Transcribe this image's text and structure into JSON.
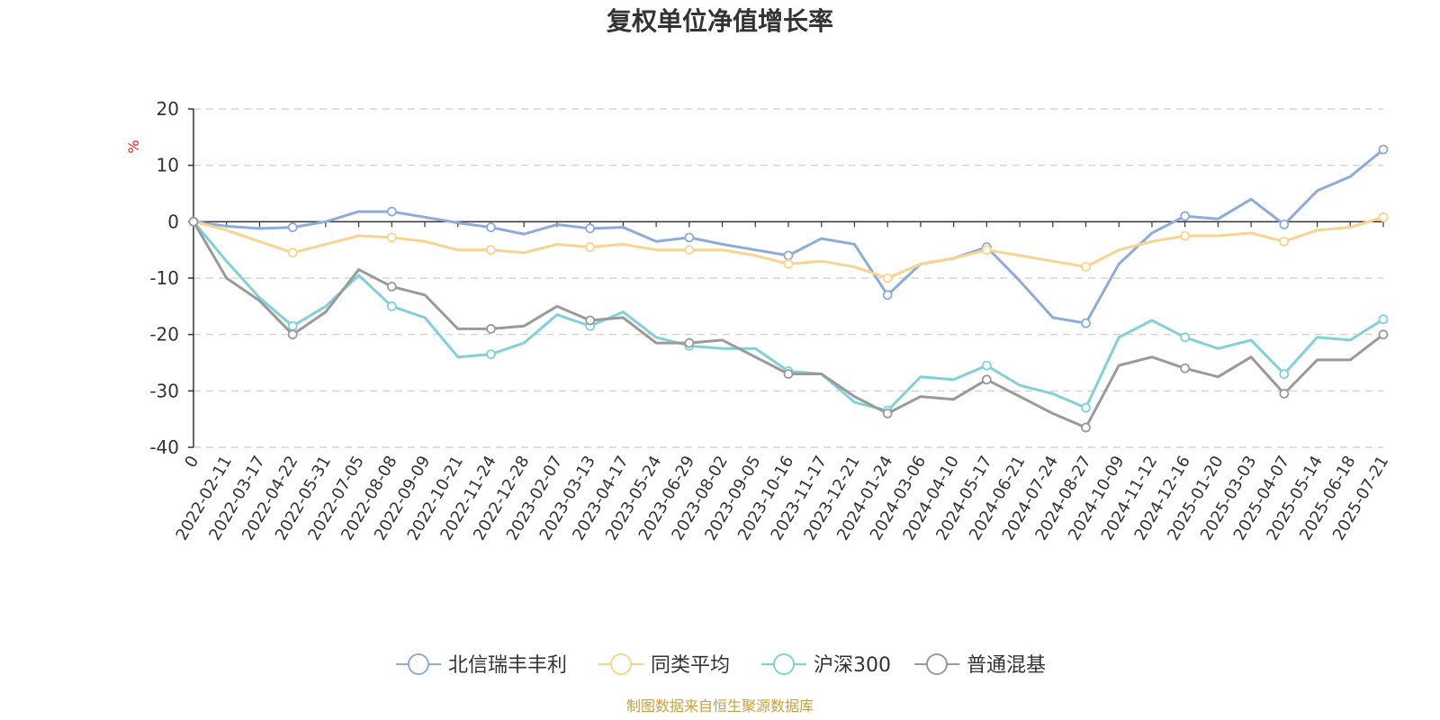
{
  "chart_data": {
    "type": "line",
    "title": "复权单位净值增长率",
    "ylabel": "%",
    "ylim": [
      -40,
      20
    ],
    "yticks": [
      20,
      10,
      0,
      -10,
      -20,
      -30,
      -40
    ],
    "grid": "horizontal-dashed",
    "legend_position": "bottom",
    "source_note": "制图数据来自恒生聚源数据库",
    "categories": [
      "0",
      "2022-02-11",
      "2022-03-17",
      "2022-04-22",
      "2022-05-31",
      "2022-07-05",
      "2022-08-08",
      "2022-09-09",
      "2022-10-21",
      "2022-11-24",
      "2022-12-28",
      "2023-02-07",
      "2023-03-13",
      "2023-04-17",
      "2023-05-24",
      "2023-06-29",
      "2023-08-02",
      "2023-09-05",
      "2023-10-16",
      "2023-11-17",
      "2023-12-21",
      "2024-01-24",
      "2024-03-06",
      "2024-04-10",
      "2024-05-17",
      "2024-06-21",
      "2024-07-24",
      "2024-08-27",
      "2024-10-09",
      "2024-11-12",
      "2024-12-16",
      "2025-01-20",
      "2025-03-03",
      "2025-04-07",
      "2025-05-14",
      "2025-06-18",
      "2025-07-21"
    ],
    "series": [
      {
        "name": "北信瑞丰丰利",
        "color": "#8eacd9",
        "values": [
          0,
          -0.8,
          -1.2,
          -1.0,
          0.0,
          1.8,
          1.8,
          0.8,
          -0.2,
          -1.0,
          -2.2,
          -0.5,
          -1.2,
          -1.0,
          -3.5,
          -2.8,
          -4.0,
          -5.0,
          -6.0,
          -3.0,
          -4.0,
          -13.0,
          -7.5,
          -6.5,
          -4.5,
          -10.5,
          -17.0,
          -18.0,
          -7.5,
          -2.0,
          1.0,
          0.5,
          4.0,
          -0.5,
          5.5,
          8.0,
          12.8
        ]
      },
      {
        "name": "同类平均",
        "color": "#f9d48e",
        "values": [
          0,
          -1.5,
          -3.5,
          -5.5,
          -4.0,
          -2.5,
          -2.8,
          -3.5,
          -5.0,
          -5.0,
          -5.5,
          -4.0,
          -4.5,
          -4.0,
          -5.0,
          -5.0,
          -5.0,
          -6.0,
          -7.5,
          -7.0,
          -8.0,
          -10.0,
          -7.5,
          -6.5,
          -5.0,
          -6.0,
          -7.0,
          -8.0,
          -5.0,
          -3.5,
          -2.5,
          -2.5,
          -2.0,
          -3.5,
          -1.5,
          -1.0,
          0.8
        ]
      },
      {
        "name": "沪深300",
        "color": "#80d2d8",
        "values": [
          0,
          -7.0,
          -13.5,
          -18.5,
          -15.0,
          -9.5,
          -15.0,
          -17.0,
          -24.0,
          -23.5,
          -21.5,
          -16.5,
          -18.5,
          -16.0,
          -20.5,
          -22.0,
          -22.5,
          -22.5,
          -26.5,
          -27.0,
          -32.0,
          -33.5,
          -27.5,
          -28.0,
          -25.5,
          -29.0,
          -30.5,
          -33.0,
          -20.5,
          -17.5,
          -20.5,
          -22.5,
          -21.0,
          -27.0,
          -20.5,
          -21.0,
          -17.3
        ]
      },
      {
        "name": "普通混基",
        "color": "#9a9a9a",
        "values": [
          0,
          -10.0,
          -14.0,
          -20.0,
          -16.0,
          -8.5,
          -11.5,
          -13.0,
          -19.0,
          -19.0,
          -18.5,
          -15.0,
          -17.5,
          -17.0,
          -21.5,
          -21.5,
          -21.0,
          -24.0,
          -27.0,
          -27.0,
          -31.0,
          -34.0,
          -31.0,
          -31.5,
          -28.0,
          -31.0,
          -34.0,
          -36.5,
          -25.5,
          -24.0,
          -26.0,
          -27.5,
          -24.0,
          -30.5,
          -24.5,
          -24.5,
          -20.0
        ]
      }
    ]
  },
  "colors": {
    "axis": "#333333",
    "grid": "#cccccc",
    "source": "#c8a040",
    "unit": "#e02020"
  }
}
